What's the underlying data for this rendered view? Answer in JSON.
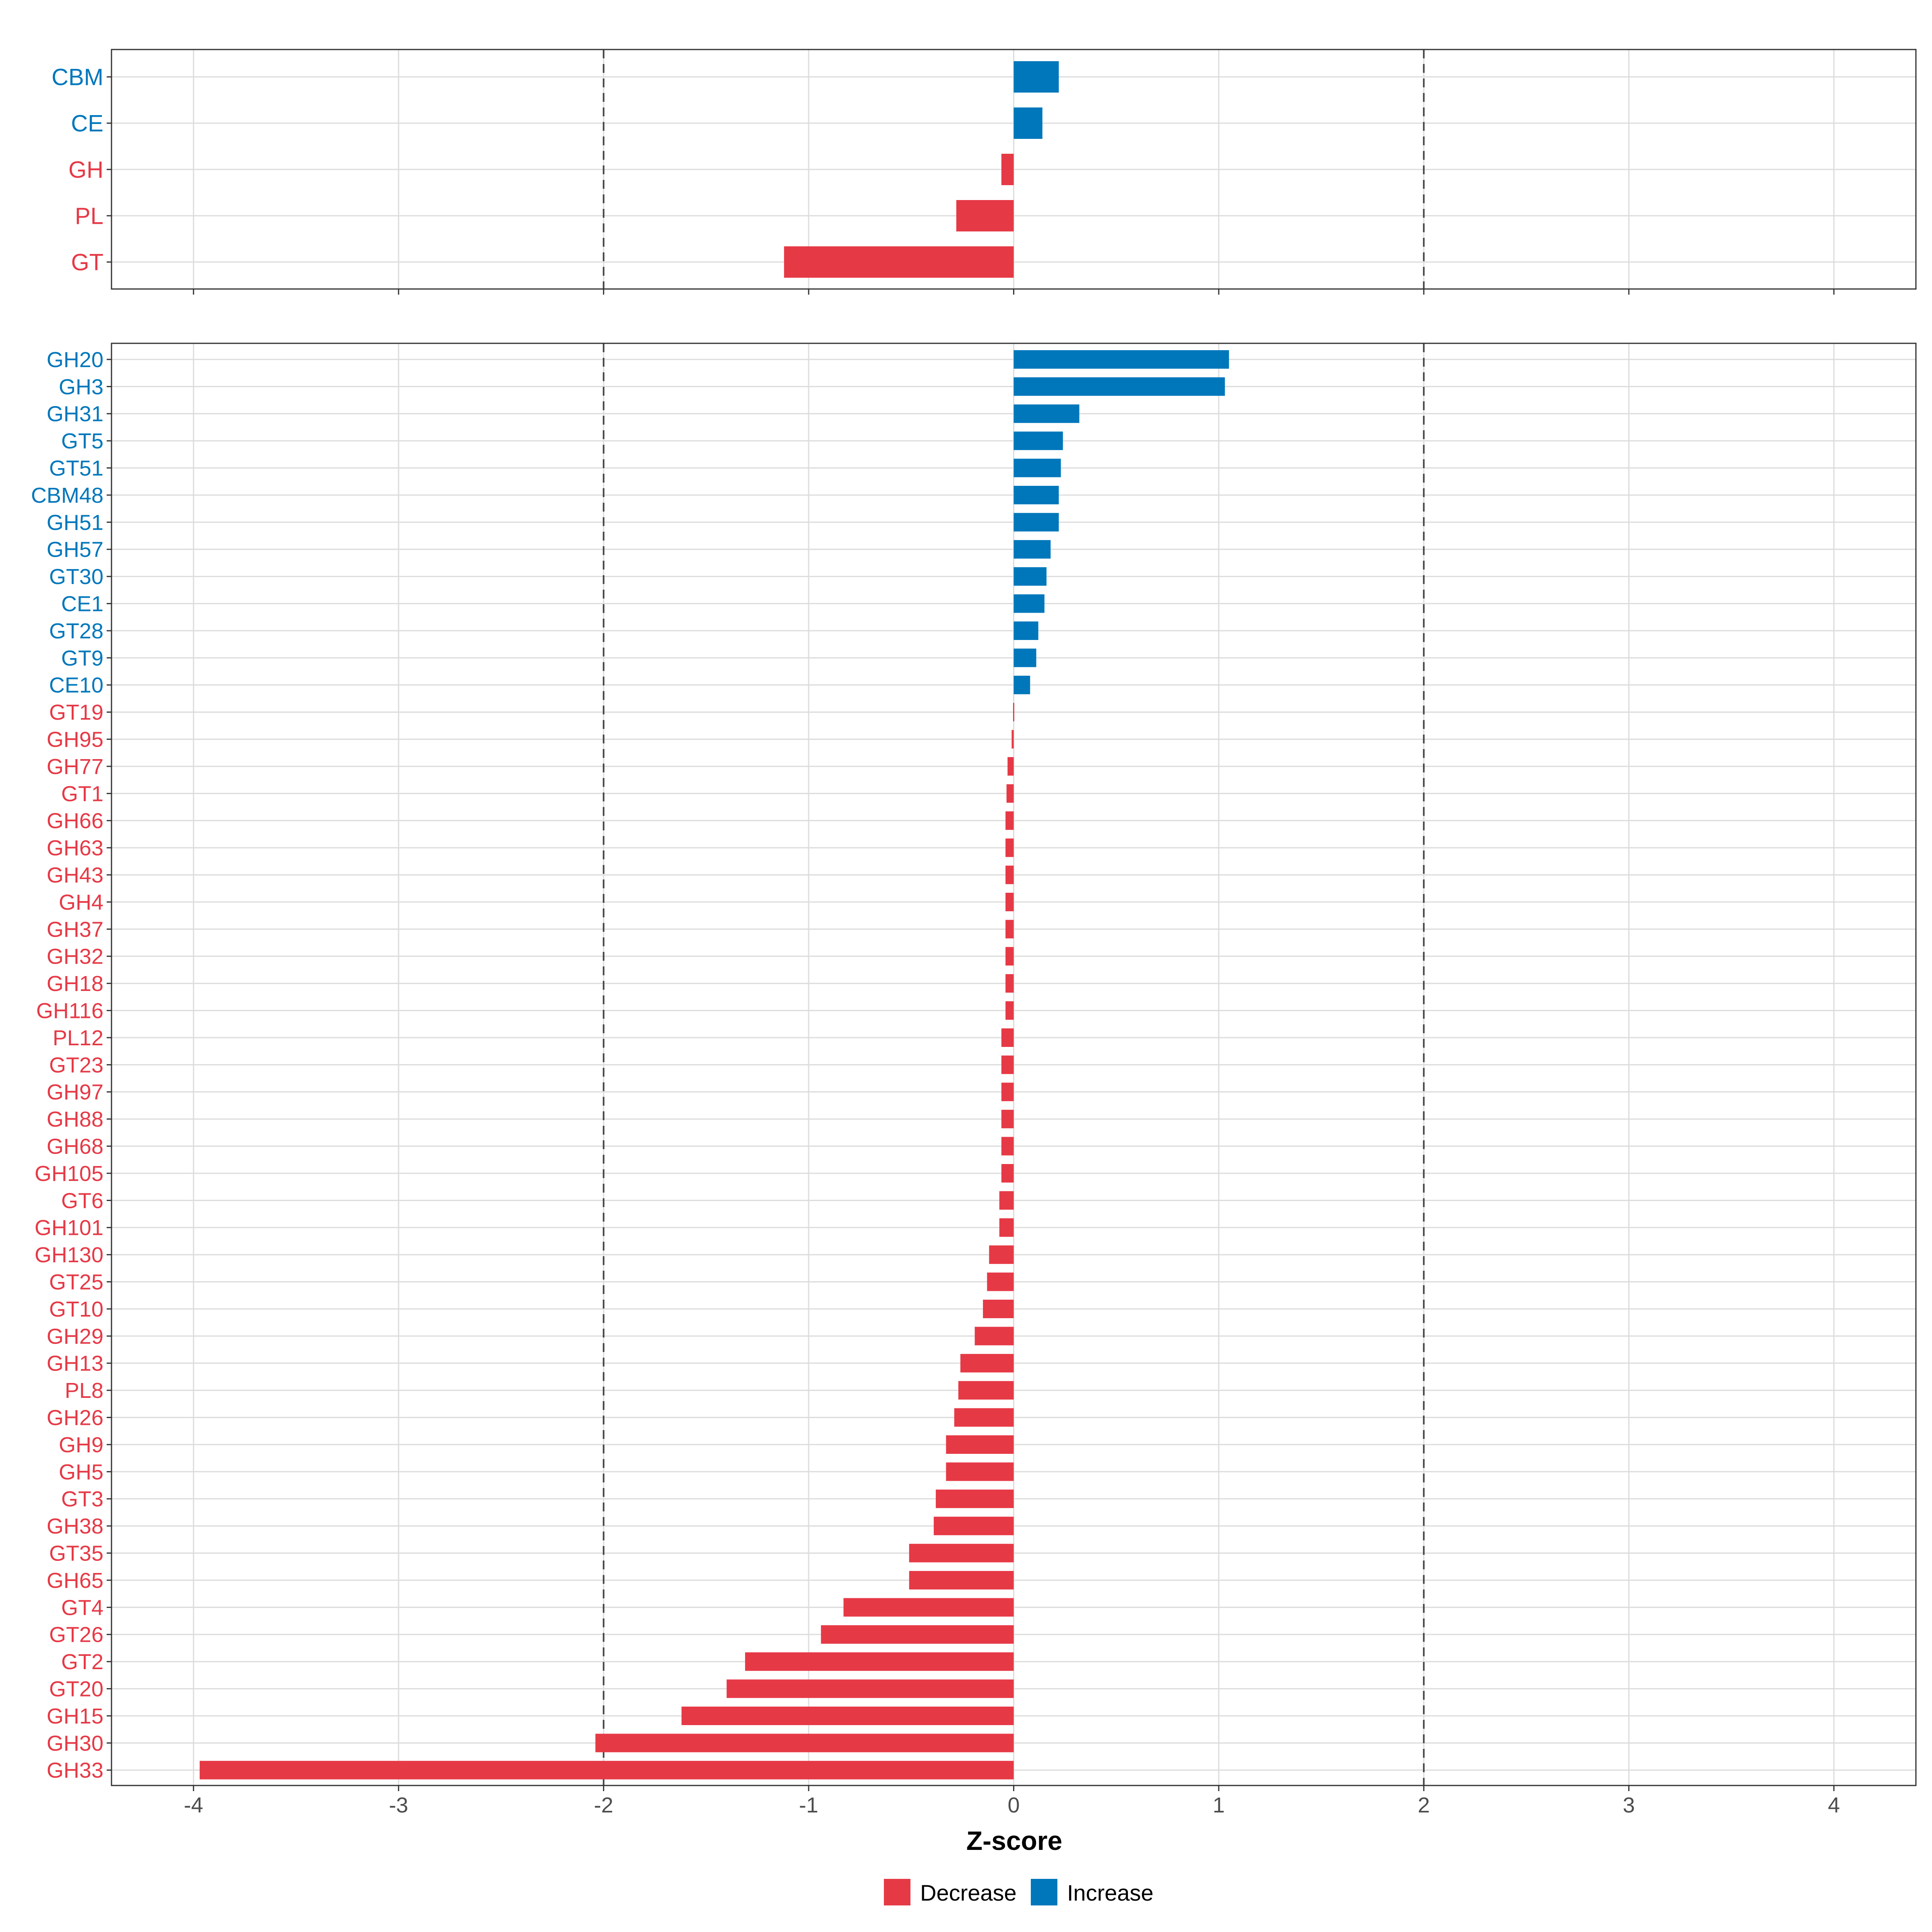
{
  "colors": {
    "decrease": "#E63946",
    "increase": "#0077BB",
    "grid": "#DCDCDC",
    "threshold": "#444444",
    "axis_text": "#4D4D4D"
  },
  "chart_data": {
    "type": "bar",
    "orientation": "horizontal",
    "xlabel": "Z-score",
    "xlim": [
      -4.4,
      4.4
    ],
    "x_ticks": [
      -4,
      -3,
      -2,
      -1,
      0,
      1,
      2,
      3,
      4
    ],
    "x_tick_labels": [
      "-4",
      "-3",
      "-2",
      "-1",
      "0",
      "1",
      "2",
      "3",
      "4"
    ],
    "thresholds": [
      -2,
      2
    ],
    "grid": true,
    "legend": {
      "position": "bottom",
      "items": [
        {
          "label": "Decrease",
          "color_key": "decrease"
        },
        {
          "label": "Increase",
          "color_key": "increase"
        }
      ]
    },
    "panels": [
      {
        "name": "class",
        "categories": [
          "CBM",
          "CE",
          "GH",
          "PL",
          "GT"
        ],
        "values": [
          0.22,
          0.14,
          -0.06,
          -0.28,
          -1.12
        ]
      },
      {
        "name": "family",
        "categories": [
          "GH20",
          "GH3",
          "GH31",
          "GT5",
          "GT51",
          "CBM48",
          "GH51",
          "GH57",
          "GT30",
          "CE1",
          "GT28",
          "GT9",
          "CE10",
          "GT19",
          "GH95",
          "GH77",
          "GT1",
          "GH66",
          "GH63",
          "GH43",
          "GH4",
          "GH37",
          "GH32",
          "GH18",
          "GH116",
          "PL12",
          "GT23",
          "GH97",
          "GH88",
          "GH68",
          "GH105",
          "GT6",
          "GH101",
          "GH130",
          "GT25",
          "GT10",
          "GH29",
          "GH13",
          "PL8",
          "GH26",
          "GH9",
          "GH5",
          "GT3",
          "GH38",
          "GT35",
          "GH65",
          "GT4",
          "GT26",
          "GT2",
          "GT20",
          "GH15",
          "GH30",
          "GH33"
        ],
        "values": [
          1.05,
          1.03,
          0.32,
          0.24,
          0.23,
          0.22,
          0.22,
          0.18,
          0.16,
          0.15,
          0.12,
          0.11,
          0.08,
          -0.003,
          -0.01,
          -0.03,
          -0.035,
          -0.04,
          -0.04,
          -0.04,
          -0.04,
          -0.04,
          -0.04,
          -0.04,
          -0.04,
          -0.06,
          -0.06,
          -0.06,
          -0.06,
          -0.06,
          -0.06,
          -0.07,
          -0.07,
          -0.12,
          -0.13,
          -0.15,
          -0.19,
          -0.26,
          -0.27,
          -0.29,
          -0.33,
          -0.33,
          -0.38,
          -0.39,
          -0.51,
          -0.51,
          -0.83,
          -0.94,
          -1.31,
          -1.4,
          -1.62,
          -2.04,
          -3.97
        ]
      }
    ]
  }
}
